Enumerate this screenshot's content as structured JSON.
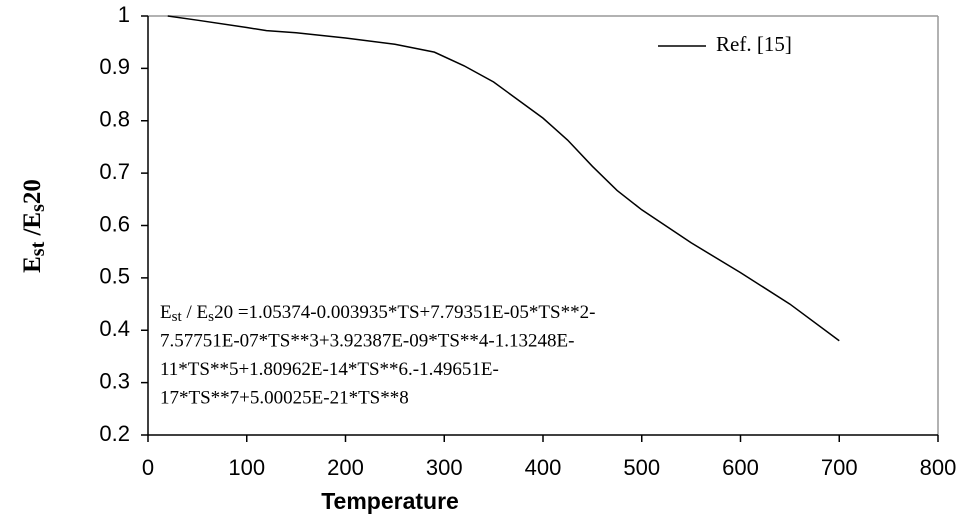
{
  "chart_data": {
    "type": "line",
    "xlabel": "Temperature",
    "ylabel": [
      {
        "text": "E"
      },
      {
        "text": "st",
        "sub": true
      },
      {
        "text": " /E"
      },
      {
        "text": "s",
        "sub": true
      },
      {
        "text": "20"
      }
    ],
    "x": [
      20,
      50,
      100,
      120,
      150,
      200,
      250,
      290,
      320,
      350,
      400,
      425,
      450,
      475,
      500,
      550,
      600,
      650,
      700
    ],
    "series": [
      {
        "name": "Ref. [15]",
        "color": "#000000",
        "values": [
          1.0,
          0.992,
          0.978,
          0.972,
          0.968,
          0.958,
          0.946,
          0.931,
          0.905,
          0.874,
          0.805,
          0.763,
          0.713,
          0.667,
          0.63,
          0.567,
          0.51,
          0.45,
          0.38
        ]
      }
    ],
    "xlim": [
      0,
      800
    ],
    "xticks": [
      0,
      100,
      200,
      300,
      400,
      500,
      600,
      700,
      800
    ],
    "ylim": [
      0.2,
      1
    ],
    "yticks": [
      0.2,
      0.3,
      0.4,
      0.5,
      0.6,
      0.7,
      0.8,
      0.9,
      1
    ],
    "legend": "upper-right",
    "annotation": [
      [
        {
          "text": "E"
        },
        {
          "text": "st",
          "sub": true
        },
        {
          "text": " / E"
        },
        {
          "text": "s",
          "sub": true
        },
        {
          "text": "20 =1.05374-0.003935*TS+7.79351E-05*TS**2-"
        }
      ],
      [
        {
          "text": "7.57751E-07*TS**3+3.92387E-09*TS**4-1.13248E-"
        }
      ],
      [
        {
          "text": "11*TS**5+1.80962E-14*TS**6.-1.49651E-"
        }
      ],
      [
        {
          "text": "17*TS**7+5.00025E-21*TS**8"
        }
      ]
    ]
  }
}
